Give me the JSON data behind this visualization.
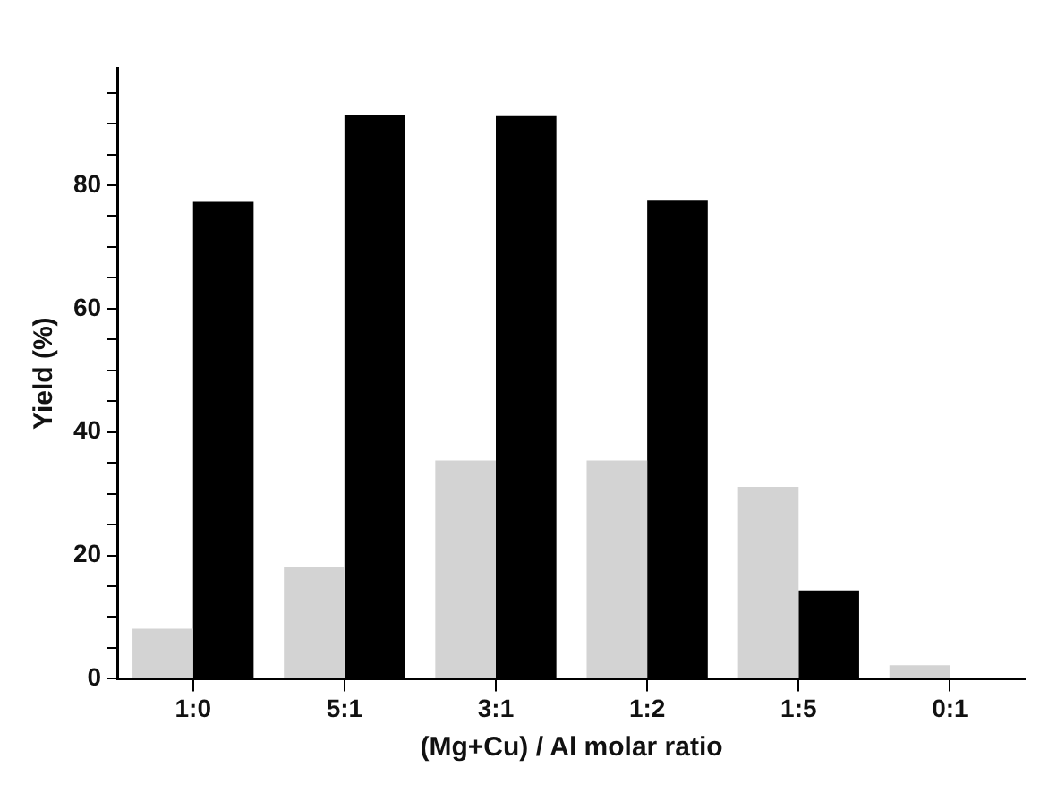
{
  "chart_data": {
    "type": "bar",
    "xlabel": "(Mg+Cu) / Al molar ratio",
    "ylabel": "Yield (%)",
    "categories": [
      "1:0",
      "5:1",
      "3:1",
      "1:2",
      "1:5",
      "0:1"
    ],
    "series": [
      {
        "color": "#d3d3d3",
        "values": [
          8.1,
          18.2,
          35.4,
          35.4,
          31.1,
          2.2
        ]
      },
      {
        "color": "#000000",
        "values": [
          77.3,
          91.4,
          91.2,
          77.5,
          14.3,
          0
        ]
      }
    ],
    "ylim": [
      0,
      99
    ],
    "yticks": [
      0,
      {
        "value": 5,
        "label": null
      },
      {
        "value": 10,
        "label": null
      },
      {
        "value": 15,
        "label": null
      },
      20,
      {
        "value": 25,
        "label": null
      },
      {
        "value": 30,
        "label": null
      },
      {
        "value": 35,
        "label": null
      },
      40,
      {
        "value": 45,
        "label": null
      },
      {
        "value": 50,
        "label": null
      },
      {
        "value": 55,
        "label": null
      },
      60,
      {
        "value": 65,
        "label": null
      },
      {
        "value": 70,
        "label": null
      },
      {
        "value": 75,
        "label": null
      },
      80,
      {
        "value": 85,
        "label": null
      },
      {
        "value": 90,
        "label": null
      },
      {
        "value": 95,
        "label": null
      }
    ],
    "grid": false,
    "legend": false
  }
}
